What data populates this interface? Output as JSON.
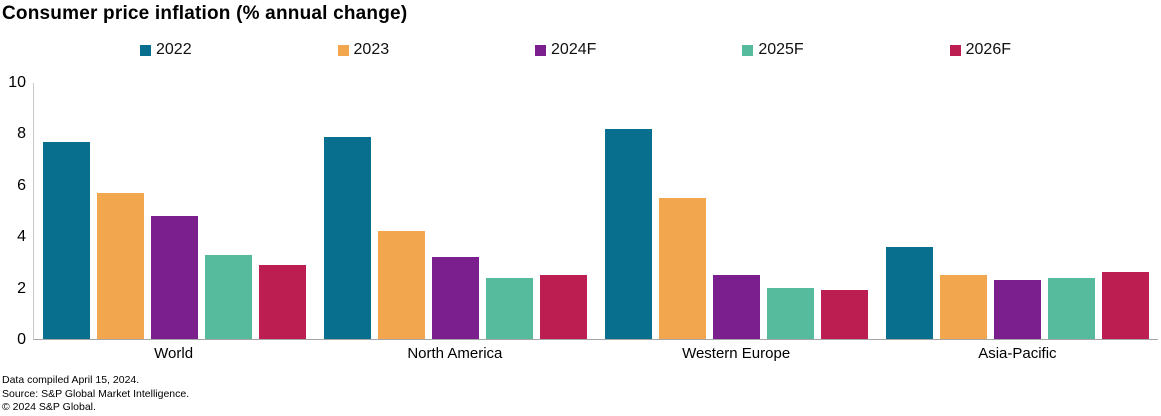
{
  "title": "Consumer price inflation (% annual change)",
  "footer": {
    "line1": "Data compiled April 15, 2024.",
    "line2": "Source: S&P Global Market Intelligence.",
    "line3": "© 2024 S&P Global."
  },
  "chart_data": {
    "type": "bar",
    "title": "Consumer price inflation (% annual change)",
    "categories": [
      "World",
      "North America",
      "Western Europe",
      "Asia-Pacific"
    ],
    "series": [
      {
        "name": "2022",
        "color": "#086F8E",
        "values": [
          7.7,
          7.9,
          8.2,
          3.6
        ]
      },
      {
        "name": "2023",
        "color": "#F2A74F",
        "values": [
          5.7,
          4.2,
          5.5,
          2.5
        ]
      },
      {
        "name": "2024F",
        "color": "#7B1F8F",
        "values": [
          4.8,
          3.2,
          2.5,
          2.3
        ]
      },
      {
        "name": "2025F",
        "color": "#55BB9C",
        "values": [
          3.3,
          2.4,
          2.0,
          2.4
        ]
      },
      {
        "name": "2026F",
        "color": "#BD1E52",
        "values": [
          2.9,
          2.5,
          1.9,
          2.6
        ]
      }
    ],
    "xlabel": "",
    "ylabel": "",
    "ylim": [
      0,
      10
    ],
    "yticks": [
      0,
      2,
      4,
      6,
      8,
      10
    ],
    "grid": false,
    "legend_position": "top",
    "axis_line_color": "#c9c9c9",
    "baseline_color": "#a6a6a6"
  }
}
